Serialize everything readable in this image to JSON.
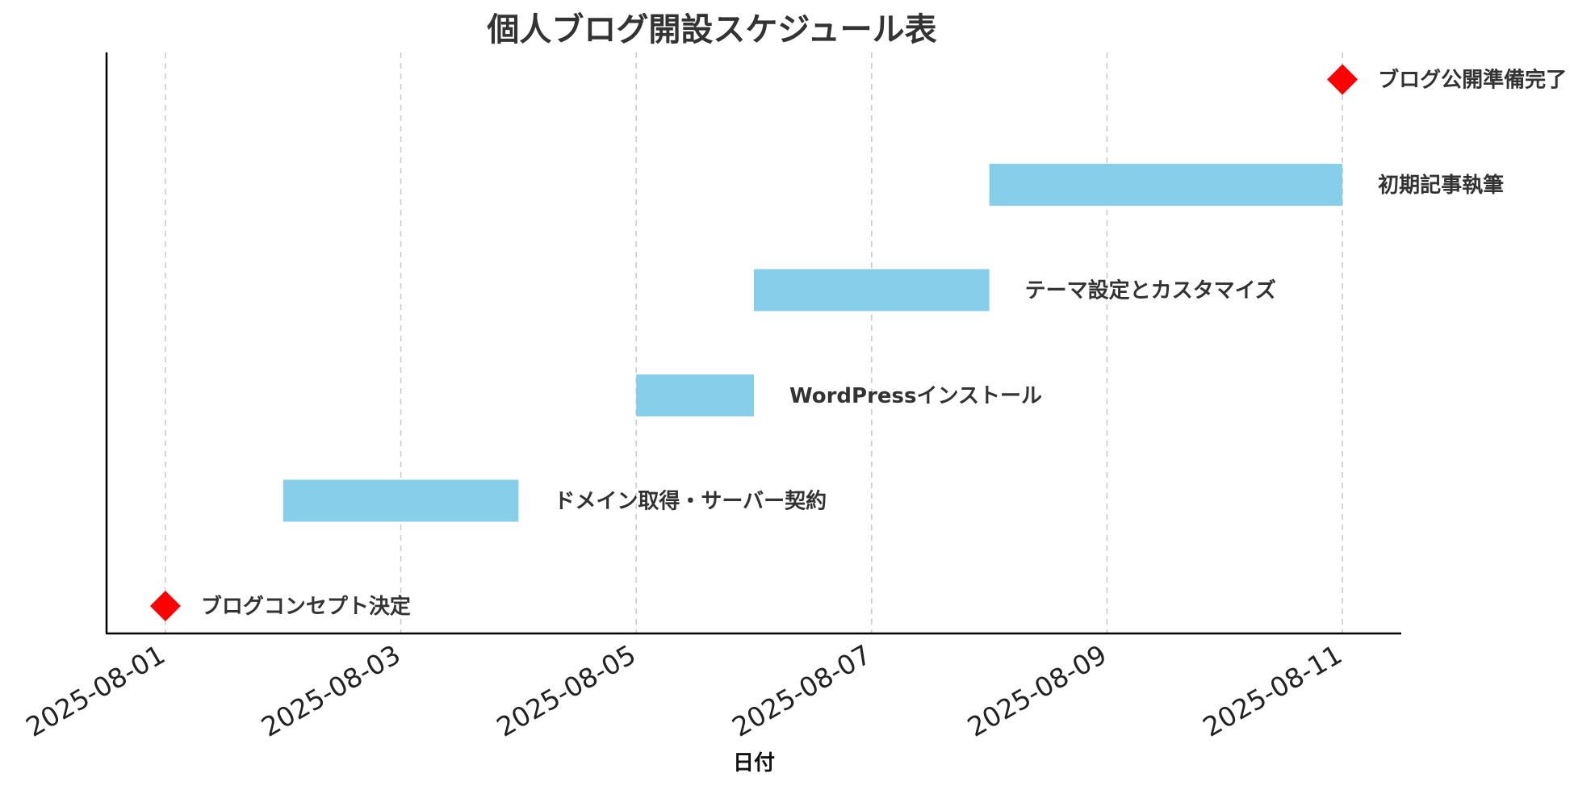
{
  "chart_data": {
    "type": "gantt",
    "title": "個人ブログ開設スケジュール表",
    "xlabel": "日付",
    "ylabel": "",
    "xlim": [
      "2025-07-31T12:00",
      "2025-08-11T12:00"
    ],
    "x_ticks": [
      "2025-08-01",
      "2025-08-03",
      "2025-08-05",
      "2025-08-07",
      "2025-08-09",
      "2025-08-11"
    ],
    "grid": "x-dashed",
    "bar_color": "#87CEEB",
    "milestone_color": "#FF0000",
    "tasks": [
      {
        "name": "ブログコンセプト決定",
        "start": "2025-08-01",
        "end": "2025-08-01",
        "kind": "milestone"
      },
      {
        "name": "ドメイン取得・サーバー契約",
        "start": "2025-08-02",
        "end": "2025-08-04",
        "kind": "task"
      },
      {
        "name": "WordPressインストール",
        "start": "2025-08-05",
        "end": "2025-08-06",
        "kind": "task"
      },
      {
        "name": "テーマ設定とカスタマイズ",
        "start": "2025-08-06",
        "end": "2025-08-08",
        "kind": "task"
      },
      {
        "name": "初期記事執筆",
        "start": "2025-08-08",
        "end": "2025-08-11",
        "kind": "task"
      },
      {
        "name": "ブログ公開準備完了",
        "start": "2025-08-11",
        "end": "2025-08-11",
        "kind": "milestone"
      }
    ]
  }
}
